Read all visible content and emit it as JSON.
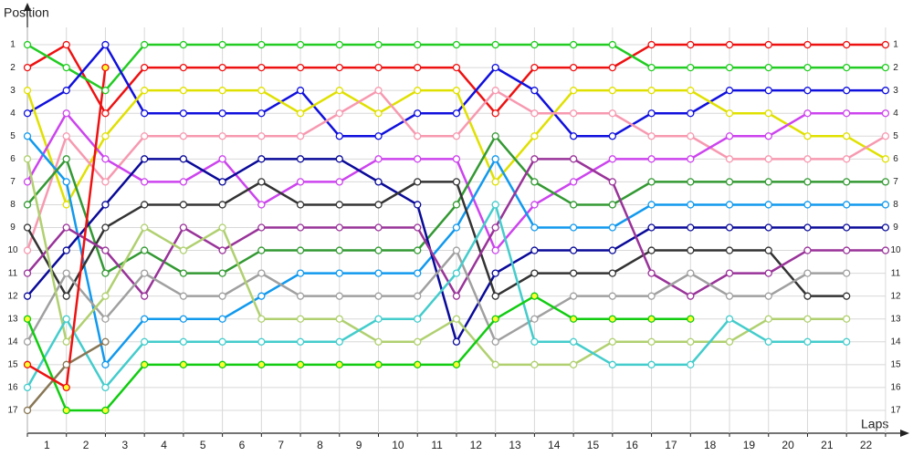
{
  "chart_data": {
    "type": "line",
    "ylabel": "Position",
    "xlabel": "Laps",
    "x": [
      0,
      1,
      2,
      3,
      4,
      5,
      6,
      7,
      8,
      9,
      10,
      11,
      12,
      13,
      14,
      15,
      16,
      17,
      18,
      19,
      20,
      21,
      22
    ],
    "xlim": [
      0,
      22.4
    ],
    "xticks": [
      {
        "value": 0.5,
        "label": "1"
      },
      {
        "value": 1.5,
        "label": "2"
      },
      {
        "value": 2.5,
        "label": "3"
      },
      {
        "value": 3.5,
        "label": "4"
      },
      {
        "value": 4.5,
        "label": "5"
      },
      {
        "value": 5.5,
        "label": "6"
      },
      {
        "value": 6.5,
        "label": "7"
      },
      {
        "value": 7.5,
        "label": "8"
      },
      {
        "value": 8.5,
        "label": "9"
      },
      {
        "value": 9.5,
        "label": "10"
      },
      {
        "value": 10.5,
        "label": "11"
      },
      {
        "value": 11.5,
        "label": "12"
      },
      {
        "value": 12.5,
        "label": "13"
      },
      {
        "value": 13.5,
        "label": "14"
      },
      {
        "value": 14.5,
        "label": "15"
      },
      {
        "value": 15.5,
        "label": "16"
      },
      {
        "value": 16.5,
        "label": "17"
      },
      {
        "value": 17.5,
        "label": "18"
      },
      {
        "value": 18.5,
        "label": "19"
      },
      {
        "value": 19.5,
        "label": "20"
      },
      {
        "value": 20.5,
        "label": "21"
      },
      {
        "value": 21.5,
        "label": "22"
      }
    ],
    "ylim": [
      18,
      0
    ],
    "yticks": [
      1,
      2,
      3,
      4,
      5,
      6,
      7,
      8,
      9,
      10,
      11,
      12,
      13,
      14,
      15,
      16,
      17
    ],
    "grid": true,
    "series": [
      {
        "color": "#ee1111",
        "marker_color": "#ffffff",
        "values": [
          2,
          1,
          4,
          2,
          2,
          2,
          2,
          2,
          2,
          2,
          2,
          2,
          4,
          2,
          2,
          2,
          1,
          1,
          1,
          1,
          1,
          1,
          1
        ]
      },
      {
        "color": "#22cc22",
        "marker_color": "#ffffff",
        "values": [
          1,
          2,
          3,
          1,
          1,
          1,
          1,
          1,
          1,
          1,
          1,
          1,
          1,
          1,
          1,
          1,
          2,
          2,
          2,
          2,
          2,
          2,
          2
        ]
      },
      {
        "color": "#1010dd",
        "marker_color": "#ffffff",
        "values": [
          4,
          3,
          1,
          4,
          4,
          4,
          4,
          3,
          5,
          5,
          4,
          4,
          2,
          3,
          5,
          5,
          4,
          4,
          3,
          3,
          3,
          3,
          3
        ]
      },
      {
        "color": "#e0e000",
        "marker_color": "#ffffff",
        "values": [
          3,
          8,
          5,
          3,
          3,
          3,
          3,
          4,
          3,
          4,
          3,
          3,
          7,
          5,
          3,
          3,
          3,
          3,
          4,
          4,
          5,
          5,
          6
        ]
      },
      {
        "color": "#f799b0",
        "marker_color": "#ffffff",
        "values": [
          10,
          5,
          7,
          5,
          5,
          5,
          5,
          5,
          4,
          3,
          5,
          5,
          3,
          4,
          4,
          4,
          5,
          5,
          6,
          6,
          6,
          6,
          5
        ]
      },
      {
        "color": "#cc44ee",
        "marker_color": "#ffffff",
        "values": [
          7,
          4,
          6,
          7,
          7,
          6,
          8,
          7,
          7,
          6,
          6,
          6,
          10,
          8,
          7,
          6,
          6,
          6,
          5,
          5,
          4,
          4,
          4
        ]
      },
      {
        "color": "#1199ee",
        "marker_color": "#ffffff",
        "values": [
          5,
          7,
          15,
          13,
          13,
          13,
          12,
          11,
          11,
          11,
          11,
          9,
          6,
          9,
          9,
          9,
          8,
          8,
          8,
          8,
          8,
          8,
          8
        ]
      },
      {
        "color": "#339933",
        "marker_color": "#ffffff",
        "values": [
          8,
          6,
          11,
          10,
          11,
          11,
          10,
          10,
          10,
          10,
          10,
          8,
          5,
          7,
          8,
          8,
          7,
          7,
          7,
          7,
          7,
          7,
          7
        ]
      },
      {
        "color": "#0a0a99",
        "marker_color": "#ffffff",
        "values": [
          12,
          10,
          8,
          6,
          6,
          7,
          6,
          6,
          6,
          7,
          8,
          14,
          11,
          10,
          10,
          10,
          9,
          9,
          9,
          9,
          9,
          9,
          9
        ]
      },
      {
        "color": "#333333",
        "marker_color": "#ffffff",
        "values": [
          9,
          12,
          9,
          8,
          8,
          8,
          7,
          8,
          8,
          8,
          7,
          7,
          12,
          11,
          11,
          11,
          10,
          10,
          10,
          10,
          12,
          12,
          null
        ]
      },
      {
        "color": "#993399",
        "marker_color": "#ffffff",
        "values": [
          11,
          9,
          10,
          12,
          9,
          10,
          9,
          9,
          9,
          9,
          9,
          12,
          9,
          6,
          6,
          7,
          11,
          12,
          11,
          11,
          10,
          10,
          10
        ]
      },
      {
        "color": "#a0a0a0",
        "marker_color": "#ffffff",
        "values": [
          14,
          11,
          13,
          11,
          12,
          12,
          11,
          12,
          12,
          12,
          12,
          10,
          14,
          13,
          12,
          12,
          12,
          11,
          12,
          12,
          11,
          11,
          null
        ]
      },
      {
        "color": "#b0d070",
        "marker_color": "#ffffff",
        "values": [
          6,
          14,
          12,
          9,
          10,
          9,
          13,
          13,
          13,
          14,
          14,
          13,
          15,
          15,
          15,
          14,
          14,
          14,
          14,
          13,
          13,
          13,
          null
        ]
      },
      {
        "color": "#44cccc",
        "marker_color": "#ffffff",
        "values": [
          16,
          13,
          16,
          14,
          14,
          14,
          14,
          14,
          14,
          13,
          13,
          11,
          8,
          14,
          14,
          15,
          15,
          15,
          13,
          14,
          14,
          14,
          null
        ]
      },
      {
        "color": "#11cc11",
        "marker_color": "#ffff33",
        "values": [
          13,
          17,
          17,
          15,
          15,
          15,
          15,
          15,
          15,
          15,
          15,
          15,
          13,
          12,
          13,
          13,
          13,
          13,
          null,
          null,
          null,
          null,
          null
        ]
      },
      {
        "color": "#887755",
        "marker_color": "#ffffff",
        "values": [
          17,
          15,
          14,
          null,
          null,
          null,
          null,
          null,
          null,
          null,
          null,
          null,
          null,
          null,
          null,
          null,
          null,
          null,
          null,
          null,
          null,
          null,
          null
        ]
      },
      {
        "color": "#ee1111",
        "marker_color": "#ffff33",
        "values": [
          15,
          16,
          2,
          null,
          null,
          null,
          null,
          null,
          null,
          null,
          null,
          null,
          null,
          null,
          null,
          null,
          null,
          null,
          null,
          null,
          null,
          null,
          null
        ]
      }
    ]
  }
}
